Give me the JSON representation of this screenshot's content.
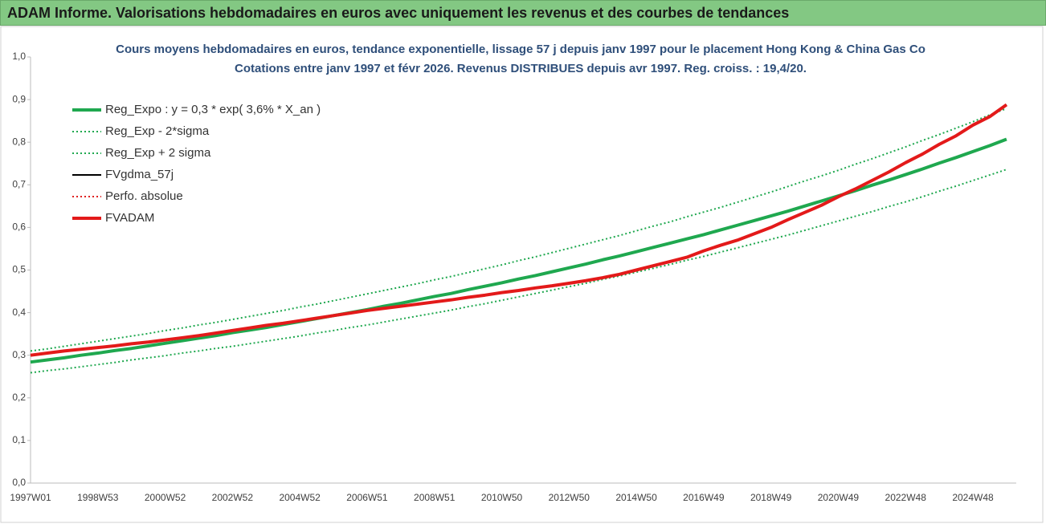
{
  "header": {
    "title": "ADAM Informe. Valorisations hebdomadaires en euros avec uniquement les revenus et des courbes de tendances"
  },
  "chart_data": {
    "type": "line",
    "title": "Cours moyens hebdomadaires en euros, tendance exponentielle, lissage 57 j depuis janv 1997 pour le placement Hong Kong & China Gas Co",
    "subtitle": "Cotations entre janv 1997 et févr 2026. Revenus DISTRIBUES depuis avr 1997. Reg. croiss. : 19,4/20.",
    "categories": [
      "1997W01",
      null,
      null,
      null,
      "1998W53",
      null,
      null,
      null,
      "2000W52",
      null,
      null,
      null,
      "2002W52",
      null,
      null,
      null,
      "2004W52",
      null,
      null,
      null,
      "2006W51",
      null,
      null,
      null,
      "2008W51",
      null,
      null,
      null,
      "2010W50",
      null,
      null,
      null,
      "2012W50",
      null,
      null,
      null,
      "2014W50",
      null,
      null,
      null,
      "2016W49",
      null,
      null,
      null,
      "2018W49",
      null,
      null,
      null,
      "2020W49",
      null,
      null,
      null,
      "2022W48",
      null,
      null,
      null,
      "2024W48",
      null,
      null
    ],
    "ylim": [
      0,
      1
    ],
    "yticks": [
      {
        "value": 0,
        "label": "0,0"
      },
      {
        "value": 0.1,
        "label": "0,1"
      },
      {
        "value": 0.2,
        "label": "0,2"
      },
      {
        "value": 0.3,
        "label": "0,3"
      },
      {
        "value": 0.4,
        "label": "0,4"
      },
      {
        "value": 0.5,
        "label": "0,5"
      },
      {
        "value": 0.6,
        "label": "0,6"
      },
      {
        "value": 0.7,
        "label": "0,7"
      },
      {
        "value": 0.8,
        "label": "0,8"
      },
      {
        "value": 0.9,
        "label": "0,9"
      },
      {
        "value": 1,
        "label": "1,0"
      }
    ],
    "legend": "upper left",
    "series": [
      {
        "name": "Reg_Expo : y = 0,3 * exp( 3,6% *  X_an )",
        "color": "#1fa84f",
        "line": "thick",
        "values": [
          0.284,
          0.289,
          0.294,
          0.3,
          0.305,
          0.311,
          0.316,
          0.322,
          0.328,
          0.334,
          0.34,
          0.346,
          0.353,
          0.359,
          0.365,
          0.372,
          0.379,
          0.386,
          0.393,
          0.4,
          0.407,
          0.415,
          0.422,
          0.43,
          0.438,
          0.445,
          0.454,
          0.462,
          0.47,
          0.479,
          0.487,
          0.496,
          0.505,
          0.514,
          0.524,
          0.533,
          0.543,
          0.553,
          0.563,
          0.573,
          0.583,
          0.594,
          0.605,
          0.616,
          0.627,
          0.638,
          0.65,
          0.662,
          0.674,
          0.686,
          0.699,
          0.711,
          0.724,
          0.737,
          0.751,
          0.764,
          0.778,
          0.792,
          0.807
        ]
      },
      {
        "name": "Reg_Exp - 2*sigma",
        "color": "#1fa84f",
        "line": "dotted",
        "values": [
          0.259,
          0.264,
          0.268,
          0.273,
          0.278,
          0.283,
          0.289,
          0.294,
          0.299,
          0.305,
          0.31,
          0.316,
          0.321,
          0.327,
          0.333,
          0.339,
          0.345,
          0.352,
          0.358,
          0.365,
          0.371,
          0.378,
          0.385,
          0.392,
          0.399,
          0.406,
          0.414,
          0.421,
          0.429,
          0.437,
          0.445,
          0.453,
          0.461,
          0.469,
          0.478,
          0.486,
          0.495,
          0.504,
          0.513,
          0.523,
          0.532,
          0.542,
          0.552,
          0.562,
          0.572,
          0.582,
          0.593,
          0.604,
          0.615,
          0.626,
          0.637,
          0.649,
          0.66,
          0.672,
          0.685,
          0.697,
          0.71,
          0.723,
          0.736
        ]
      },
      {
        "name": "Reg_Exp + 2 sigma",
        "color": "#1fa84f",
        "line": "dotted",
        "values": [
          0.31,
          0.315,
          0.321,
          0.327,
          0.333,
          0.339,
          0.345,
          0.351,
          0.358,
          0.364,
          0.371,
          0.377,
          0.384,
          0.391,
          0.398,
          0.405,
          0.413,
          0.42,
          0.428,
          0.436,
          0.444,
          0.452,
          0.46,
          0.468,
          0.477,
          0.485,
          0.494,
          0.503,
          0.512,
          0.522,
          0.531,
          0.541,
          0.551,
          0.561,
          0.571,
          0.581,
          0.592,
          0.603,
          0.613,
          0.625,
          0.636,
          0.647,
          0.659,
          0.671,
          0.683,
          0.696,
          0.709,
          0.721,
          0.734,
          0.748,
          0.761,
          0.775,
          0.789,
          0.804,
          0.818,
          0.833,
          0.848,
          0.864,
          0.879
        ]
      },
      {
        "name": "FVgdma_57j",
        "color": "#000000",
        "line": "thin",
        "values": [
          0.3,
          0.305,
          0.31,
          0.314,
          0.318,
          0.322,
          0.327,
          0.331,
          0.336,
          0.341,
          0.346,
          0.352,
          0.358,
          0.364,
          0.37,
          0.375,
          0.381,
          0.387,
          0.393,
          0.399,
          0.405,
          0.41,
          0.415,
          0.42,
          0.425,
          0.43,
          0.436,
          0.441,
          0.447,
          0.452,
          0.458,
          0.463,
          0.469,
          0.475,
          0.482,
          0.49,
          0.5,
          0.51,
          0.52,
          0.53,
          0.545,
          0.558,
          0.57,
          0.585,
          0.6,
          0.618,
          0.635,
          0.652,
          0.672,
          0.69,
          0.71,
          0.73,
          0.752,
          0.772,
          0.795,
          0.815,
          0.84,
          0.86,
          0.888
        ]
      },
      {
        "name": "Perfo. absolue",
        "color": "#e02020",
        "line": "dotted",
        "values": [
          0.3,
          0.305,
          0.31,
          0.314,
          0.318,
          0.322,
          0.327,
          0.331,
          0.336,
          0.341,
          0.346,
          0.352,
          0.358,
          0.364,
          0.37,
          0.375,
          0.381,
          0.387,
          0.393,
          0.399,
          0.405,
          0.41,
          0.415,
          0.42,
          0.425,
          0.43,
          0.436,
          0.441,
          0.447,
          0.452,
          0.458,
          0.463,
          0.469,
          0.475,
          0.482,
          0.49,
          0.5,
          0.51,
          0.52,
          0.53,
          0.545,
          0.558,
          0.57,
          0.585,
          0.6,
          0.618,
          0.635,
          0.652,
          0.672,
          0.69,
          0.71,
          0.73,
          0.752,
          0.772,
          0.795,
          0.815,
          0.84,
          0.86,
          0.888
        ]
      },
      {
        "name": "FVADAM",
        "color": "#e31a1a",
        "line": "thick",
        "values": [
          0.3,
          0.305,
          0.31,
          0.314,
          0.318,
          0.322,
          0.327,
          0.331,
          0.336,
          0.341,
          0.346,
          0.352,
          0.358,
          0.364,
          0.37,
          0.375,
          0.381,
          0.387,
          0.393,
          0.399,
          0.405,
          0.41,
          0.415,
          0.42,
          0.425,
          0.43,
          0.436,
          0.441,
          0.447,
          0.452,
          0.458,
          0.463,
          0.469,
          0.475,
          0.482,
          0.49,
          0.5,
          0.51,
          0.52,
          0.53,
          0.545,
          0.558,
          0.57,
          0.585,
          0.6,
          0.618,
          0.635,
          0.652,
          0.672,
          0.69,
          0.71,
          0.73,
          0.752,
          0.772,
          0.795,
          0.815,
          0.84,
          0.86,
          0.888
        ]
      }
    ]
  }
}
